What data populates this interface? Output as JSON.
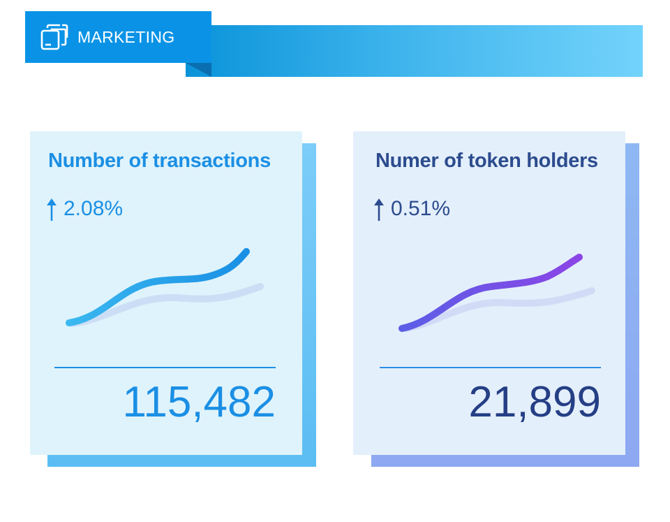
{
  "header": {
    "title": "MARKETING",
    "icon": "stacked-windows-icon",
    "colors": {
      "tab": "#0a93e6",
      "band_start": "#0a93d9",
      "band_end": "#73d3fb"
    }
  },
  "cards": [
    {
      "title": "Number of  transactions",
      "change": "2.08%",
      "change_direction": "up",
      "value": "115,482",
      "sparkline_color_start": "#3ab8f0",
      "sparkline_color_end": "#1a8fe4"
    },
    {
      "title": "Numer of token holders",
      "change": "0.51%",
      "change_direction": "up",
      "value": "21,899",
      "sparkline_color_start": "#5b5ee6",
      "sparkline_color_end": "#8b45e6"
    }
  ]
}
